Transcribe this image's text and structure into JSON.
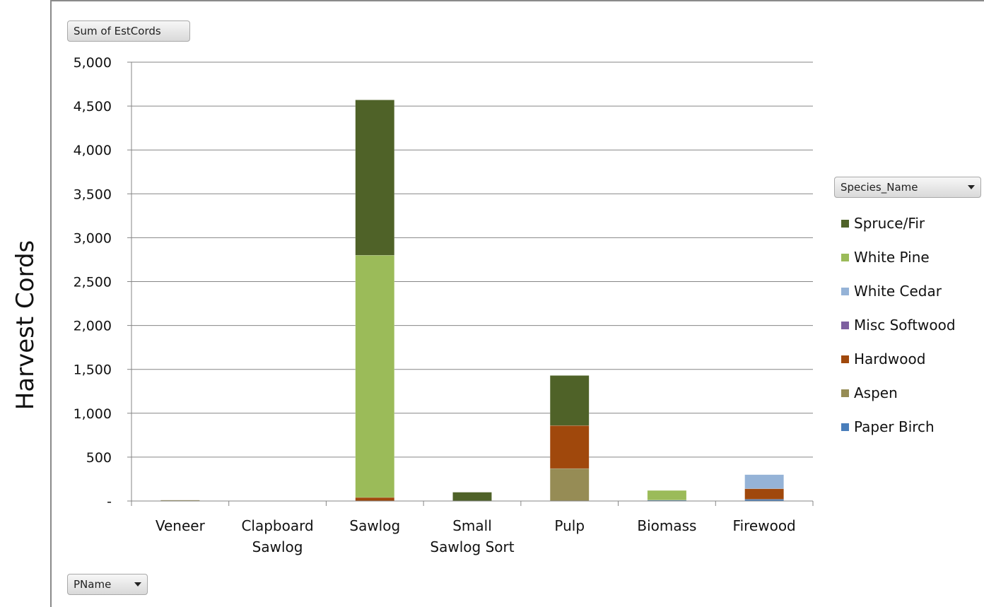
{
  "axis_title_y": "Harvest Cords",
  "pivot_value_field": "Sum of EstCords",
  "pivot_row_field": "PName",
  "pivot_legend_field": "Species_Name",
  "chart_data": {
    "type": "bar",
    "stacked": true,
    "ylabel": "Harvest Cords",
    "ylim": [
      0,
      5000
    ],
    "ytick_step": 500,
    "ytick_labels": [
      "-",
      "500",
      "1,000",
      "1,500",
      "2,000",
      "2,500",
      "3,000",
      "3,500",
      "4,000",
      "4,500",
      "5,000"
    ],
    "grid": true,
    "legend_position": "right",
    "categories": [
      "Veneer",
      "Clapboard Sawlog",
      "Sawlog",
      "Small Sawlog Sort",
      "Pulp",
      "Biomass",
      "Firewood"
    ],
    "category_lines": [
      [
        "Veneer"
      ],
      [
        "Clapboard",
        "Sawlog"
      ],
      [
        "Sawlog"
      ],
      [
        "Small",
        "Sawlog Sort"
      ],
      [
        "Pulp"
      ],
      [
        "Biomass"
      ],
      [
        "Firewood"
      ]
    ],
    "series": [
      {
        "name": "Paper Birch",
        "color": "#4a7ebb",
        "values": [
          0,
          0,
          0,
          0,
          0,
          10,
          20
        ]
      },
      {
        "name": "Aspen",
        "color": "#968c55",
        "values": [
          10,
          0,
          0,
          0,
          370,
          0,
          0
        ]
      },
      {
        "name": "Hardwood",
        "color": "#a0480c",
        "values": [
          0,
          0,
          40,
          0,
          490,
          0,
          120
        ]
      },
      {
        "name": "Misc Softwood",
        "color": "#7e60a0",
        "values": [
          0,
          0,
          0,
          0,
          0,
          0,
          0
        ]
      },
      {
        "name": "White Cedar",
        "color": "#95b3d7",
        "values": [
          0,
          0,
          0,
          0,
          0,
          0,
          160
        ]
      },
      {
        "name": "White Pine",
        "color": "#9bbb59",
        "values": [
          0,
          0,
          2760,
          0,
          0,
          110,
          0
        ]
      },
      {
        "name": "Spruce/Fir",
        "color": "#4f6228",
        "values": [
          0,
          0,
          1770,
          100,
          570,
          0,
          0
        ]
      }
    ]
  }
}
